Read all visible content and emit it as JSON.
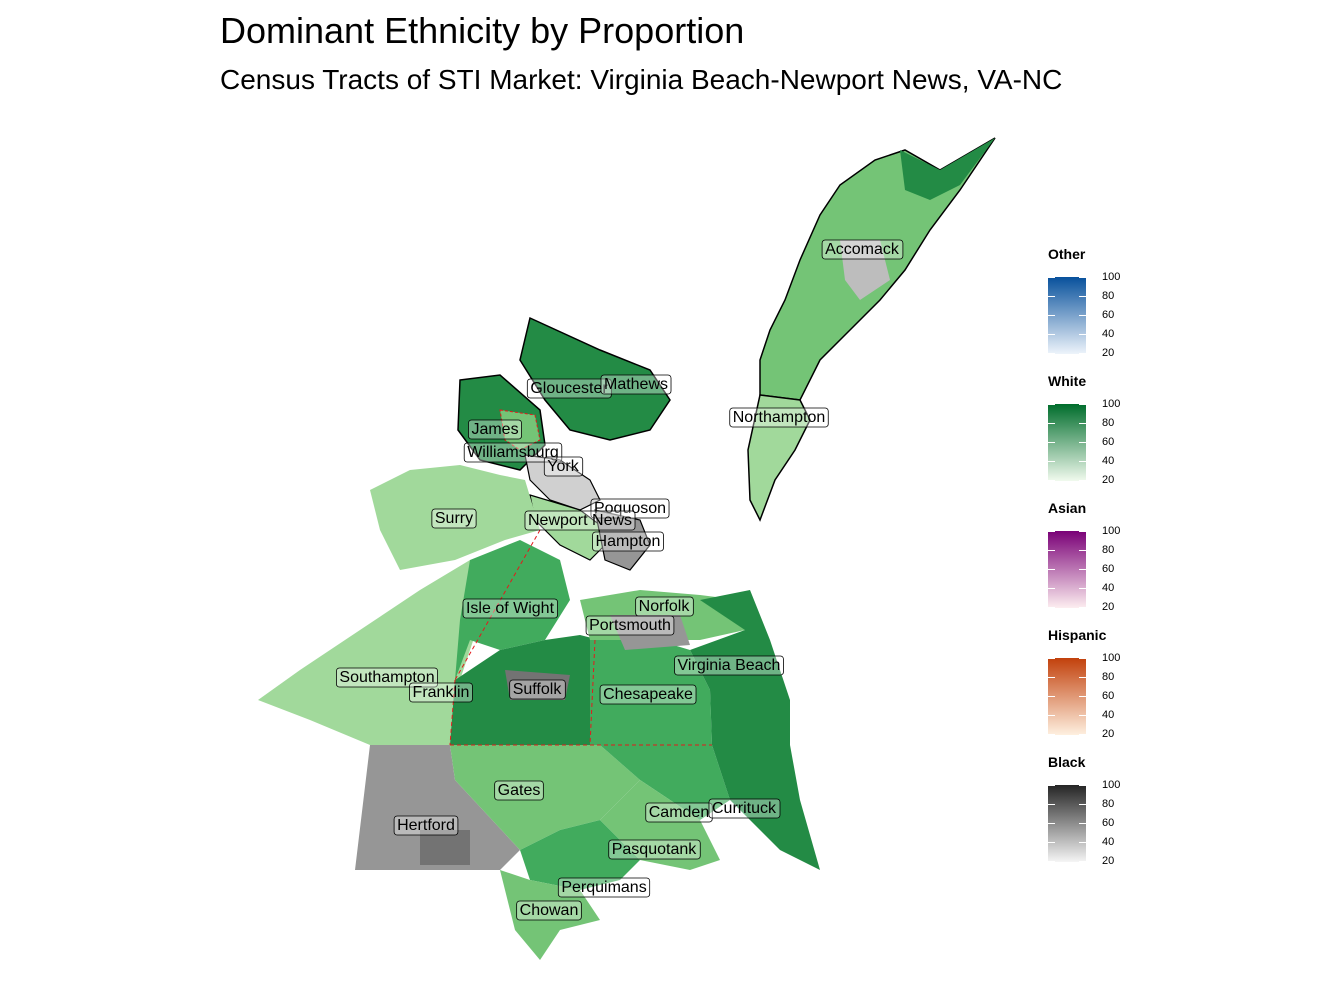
{
  "title": "Dominant Ethnicity by Proportion",
  "subtitle": "Census Tracts of STI Market: Virginia Beach-Newport News, VA-NC",
  "map": {
    "labels": [
      "Accomack",
      "Northampton",
      "Gloucester",
      "Mathews",
      "James",
      "Williamsburg",
      "York",
      "Poquoson",
      "Newport News",
      "Hampton",
      "Surry",
      "Isle of Wight",
      "Norfolk",
      "Portsmouth",
      "Virginia Beach",
      "Southampton",
      "Franklin",
      "Suffolk",
      "Chesapeake",
      "Gates",
      "Camden",
      "Currituck",
      "Hertford",
      "Pasquotank",
      "Perquimans",
      "Chowan"
    ],
    "colors": {
      "white_light": "#a1d99b",
      "white_mid": "#74c476",
      "white_dark": "#238b45",
      "black_light": "#d0d0d0",
      "black_mid": "#969696",
      "black_dark": "#525252",
      "boundary": "#e31a1c",
      "outline": "#000000"
    }
  },
  "legend": [
    {
      "title": "Other",
      "ticks": [
        "100",
        "80",
        "60",
        "40",
        "20"
      ],
      "color_low": "#eef4fb",
      "color_high": "#08519c"
    },
    {
      "title": "White",
      "ticks": [
        "100",
        "80",
        "60",
        "40",
        "20"
      ],
      "color_low": "#f1faee",
      "color_high": "#006d2c"
    },
    {
      "title": "Asian",
      "ticks": [
        "100",
        "80",
        "60",
        "40",
        "20"
      ],
      "color_low": "#fdeef0",
      "color_high": "#7a0177"
    },
    {
      "title": "Hispanic",
      "ticks": [
        "100",
        "80",
        "60",
        "40",
        "20"
      ],
      "color_low": "#fef0e0",
      "color_high": "#c2410c"
    },
    {
      "title": "Black",
      "ticks": [
        "100",
        "80",
        "60",
        "40",
        "20"
      ],
      "color_low": "#f5f5f5",
      "color_high": "#252525"
    }
  ]
}
